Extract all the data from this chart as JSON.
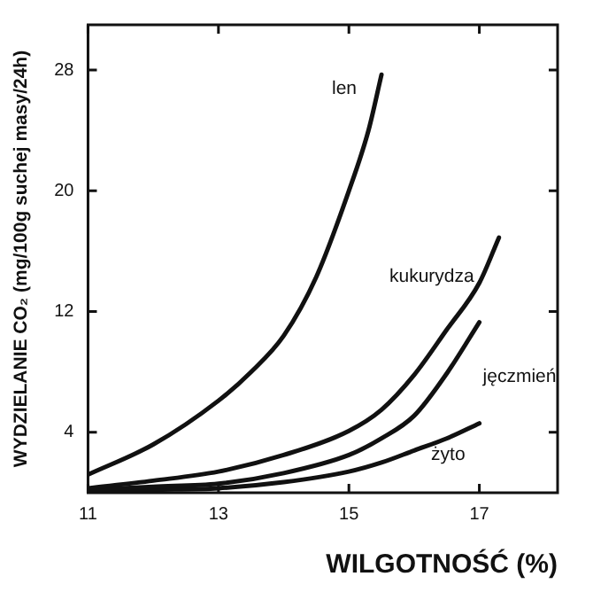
{
  "chart_data": {
    "type": "line",
    "xlabel": "WILGOTNOŚĆ (%)",
    "ylabel": "WYDZIELANIE CO₂ (mg/100g suchej masy/24h)",
    "xlim": [
      11,
      18.2
    ],
    "xticks": [
      11,
      13,
      15,
      17
    ],
    "ylim": [
      0,
      31
    ],
    "yticks": [
      4,
      12,
      20,
      28
    ],
    "grid": false,
    "legend": false,
    "marker": "none",
    "line_style": "solid",
    "series": [
      {
        "name": "len",
        "color": "#111111",
        "x": [
          11,
          12,
          13,
          13.5,
          14,
          14.5,
          15,
          15.3,
          15.5
        ],
        "values": [
          1.2,
          3.2,
          6.1,
          8,
          10.4,
          14.3,
          20,
          24,
          27.7
        ]
      },
      {
        "name": "kukurydza",
        "color": "#111111",
        "x": [
          11,
          12,
          13,
          14,
          15,
          15.5,
          16,
          16.5,
          17,
          17.3
        ],
        "values": [
          0.3,
          0.8,
          1.4,
          2.5,
          4.1,
          5.5,
          7.8,
          10.8,
          13.9,
          16.9
        ]
      },
      {
        "name": "jęczmień",
        "color": "#111111",
        "x": [
          11,
          12,
          13,
          14,
          15,
          15.5,
          16,
          16.5,
          17
        ],
        "values": [
          0.2,
          0.4,
          0.6,
          1.3,
          2.5,
          3.6,
          5.1,
          7.9,
          11.3
        ]
      },
      {
        "name": "żyto",
        "color": "#111111",
        "x": [
          11,
          12,
          13,
          14,
          15,
          15.5,
          16,
          16.5,
          17
        ],
        "values": [
          0.1,
          0.2,
          0.3,
          0.7,
          1.4,
          2,
          2.8,
          3.6,
          4.6
        ]
      }
    ]
  }
}
